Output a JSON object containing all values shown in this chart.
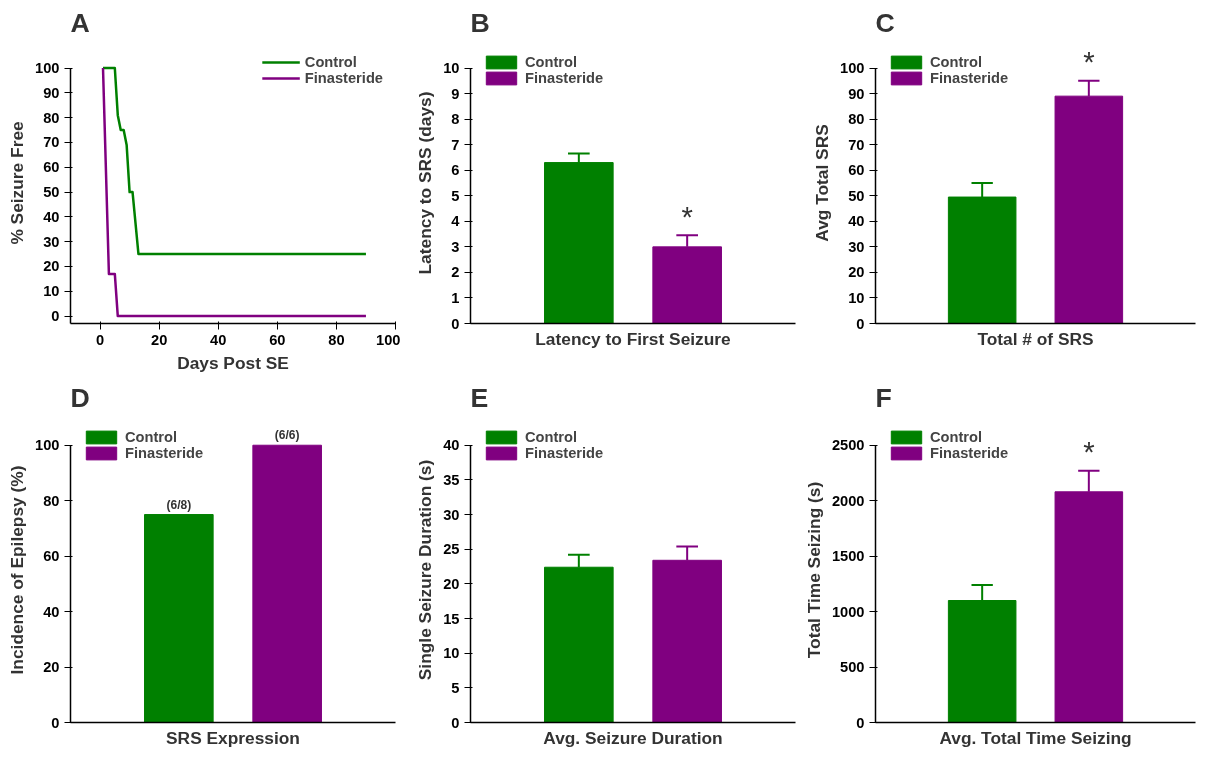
{
  "chart_data": [
    {
      "type": "line",
      "title": "A",
      "xlabel": "Days Post SE",
      "ylabel": "% Seizure Free",
      "xlim": [
        -10,
        100
      ],
      "xticks": [
        0,
        20,
        40,
        60,
        80,
        100
      ],
      "ylim": [
        -3,
        100
      ],
      "yticks": [
        0,
        10,
        20,
        30,
        40,
        50,
        60,
        70,
        80,
        90,
        100
      ],
      "legend": "top right",
      "grid": false,
      "series": [
        {
          "name": "Control",
          "color": "#008000",
          "x": [
            1,
            5,
            6,
            7,
            8,
            9,
            10,
            11,
            13,
            90
          ],
          "values": [
            100,
            100,
            81,
            75,
            75,
            69,
            50,
            50,
            25,
            25
          ]
        },
        {
          "name": "Finasteride",
          "color": "#800080",
          "x": [
            1,
            3,
            5,
            6,
            90
          ],
          "values": [
            100,
            17,
            17,
            0,
            0
          ]
        }
      ]
    },
    {
      "type": "bar",
      "title": "B",
      "xlabel": "Latency to First Seizure",
      "ylabel": "Latency to SRS (days)",
      "categories": [
        null
      ],
      "ylim": [
        0,
        10
      ],
      "yticks": [
        0,
        1,
        2,
        3,
        4,
        5,
        6,
        7,
        8,
        9,
        10
      ],
      "legend": "top left",
      "grid": false,
      "series": [
        {
          "name": "Control",
          "color": "#008000",
          "values": [
            6.3
          ],
          "errors": [
            0.35
          ]
        },
        {
          "name": "Finasteride",
          "color": "#800080",
          "values": [
            3.0
          ],
          "errors": [
            0.45
          ],
          "value_labels": [
            "*"
          ]
        }
      ]
    },
    {
      "type": "bar",
      "title": "C",
      "xlabel": "Total # of SRS",
      "ylabel": "Avg Total SRS",
      "categories": [
        null
      ],
      "ylim": [
        0,
        100
      ],
      "yticks": [
        0,
        10,
        20,
        30,
        40,
        50,
        60,
        70,
        80,
        90,
        100
      ],
      "legend": "top left",
      "grid": false,
      "series": [
        {
          "name": "Control",
          "color": "#008000",
          "values": [
            49.5
          ],
          "errors": [
            5.5
          ]
        },
        {
          "name": "Finasteride",
          "color": "#800080",
          "values": [
            89
          ],
          "errors": [
            6
          ],
          "value_labels": [
            "*"
          ]
        }
      ]
    },
    {
      "type": "bar",
      "title": "D",
      "xlabel": "SRS Expression",
      "ylabel": "Incidence of Epilepsy (%)",
      "categories": [
        null
      ],
      "ylim": [
        0,
        100
      ],
      "yticks": [
        0,
        20,
        40,
        60,
        80,
        100
      ],
      "legend": "top left",
      "grid": false,
      "series": [
        {
          "name": "Control",
          "color": "#008000",
          "values": [
            75
          ],
          "value_labels": [
            "(6/8)"
          ]
        },
        {
          "name": "Finasteride",
          "color": "#800080",
          "values": [
            100
          ],
          "value_labels": [
            "(6/6)"
          ]
        }
      ]
    },
    {
      "type": "bar",
      "title": "E",
      "xlabel": "Avg. Seizure Duration",
      "ylabel": "Single Seizure Duration (s)",
      "categories": [
        null
      ],
      "ylim": [
        0,
        40
      ],
      "yticks": [
        0,
        5,
        10,
        15,
        20,
        25,
        30,
        35,
        40
      ],
      "legend": "top left",
      "grid": false,
      "series": [
        {
          "name": "Control",
          "color": "#008000",
          "values": [
            22.4
          ],
          "errors": [
            1.8
          ]
        },
        {
          "name": "Finasteride",
          "color": "#800080",
          "values": [
            23.4
          ],
          "errors": [
            2.0
          ]
        }
      ]
    },
    {
      "type": "bar",
      "title": "F",
      "xlabel": "Avg. Total Time Seizing",
      "ylabel": "Total Time Seizing (s)",
      "categories": [
        null
      ],
      "ylim": [
        0,
        2500
      ],
      "yticks": [
        0,
        500,
        1000,
        1500,
        2000,
        2500
      ],
      "legend": "top left",
      "grid": false,
      "series": [
        {
          "name": "Control",
          "color": "#008000",
          "values": [
            1100
          ],
          "errors": [
            140
          ]
        },
        {
          "name": "Finasteride",
          "color": "#800080",
          "values": [
            2080
          ],
          "errors": [
            190
          ],
          "value_labels": [
            "*"
          ]
        }
      ]
    }
  ]
}
